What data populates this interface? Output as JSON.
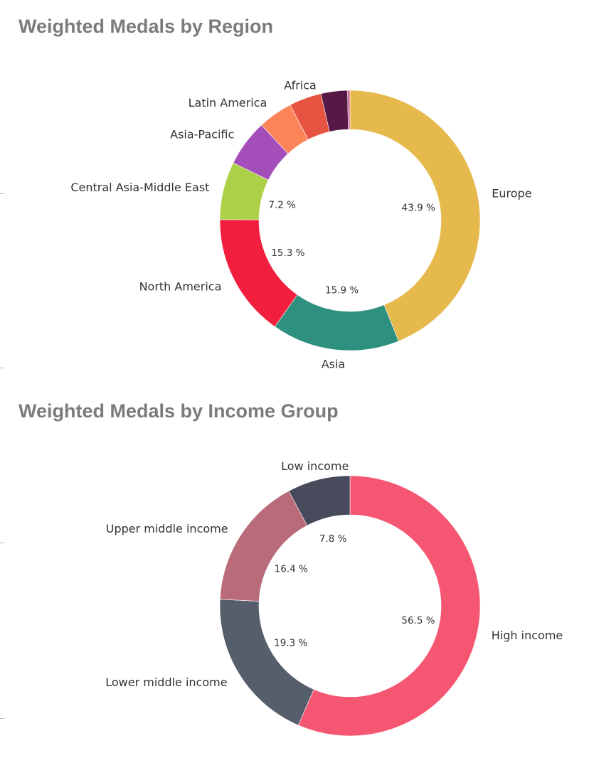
{
  "chart_data": [
    {
      "type": "pie",
      "title": "Weighted Medals by Region",
      "value_unit": "%",
      "series": [
        {
          "name": "Europe",
          "value": 43.9,
          "color": "#e6b94d",
          "show_pct": true
        },
        {
          "name": "Asia",
          "value": 15.9,
          "color": "#2e9180",
          "show_pct": true
        },
        {
          "name": "North America",
          "value": 15.3,
          "color": "#f21e3d",
          "show_pct": true
        },
        {
          "name": "Central Asia-Middle East",
          "value": 7.2,
          "color": "#acd046",
          "show_pct": true
        },
        {
          "name": "Asia-Pacific",
          "value": 5.8,
          "color": "#a44fb9",
          "show_pct": false
        },
        {
          "name": "Latin America",
          "value": 4.3,
          "color": "#fb8558",
          "show_pct": false
        },
        {
          "name": "Africa",
          "value": 4.0,
          "color": "#e65340",
          "show_pct": false
        },
        {
          "name": "",
          "value": 3.3,
          "color": "#561844",
          "show_pct": false
        },
        {
          "name": "",
          "value": 0.3,
          "color": "#d46a9a",
          "show_pct": false
        }
      ]
    },
    {
      "type": "pie",
      "title": "Weighted Medals by Income Group",
      "value_unit": "%",
      "series": [
        {
          "name": "High income",
          "value": 56.5,
          "color": "#f55672",
          "show_pct": true
        },
        {
          "name": "Lower middle income",
          "value": 19.3,
          "color": "#565d6b",
          "show_pct": true
        },
        {
          "name": "Upper middle income",
          "value": 16.4,
          "color": "#b96b7a",
          "show_pct": true
        },
        {
          "name": "Low income",
          "value": 7.8,
          "color": "#474a5a",
          "show_pct": true
        }
      ]
    }
  ]
}
